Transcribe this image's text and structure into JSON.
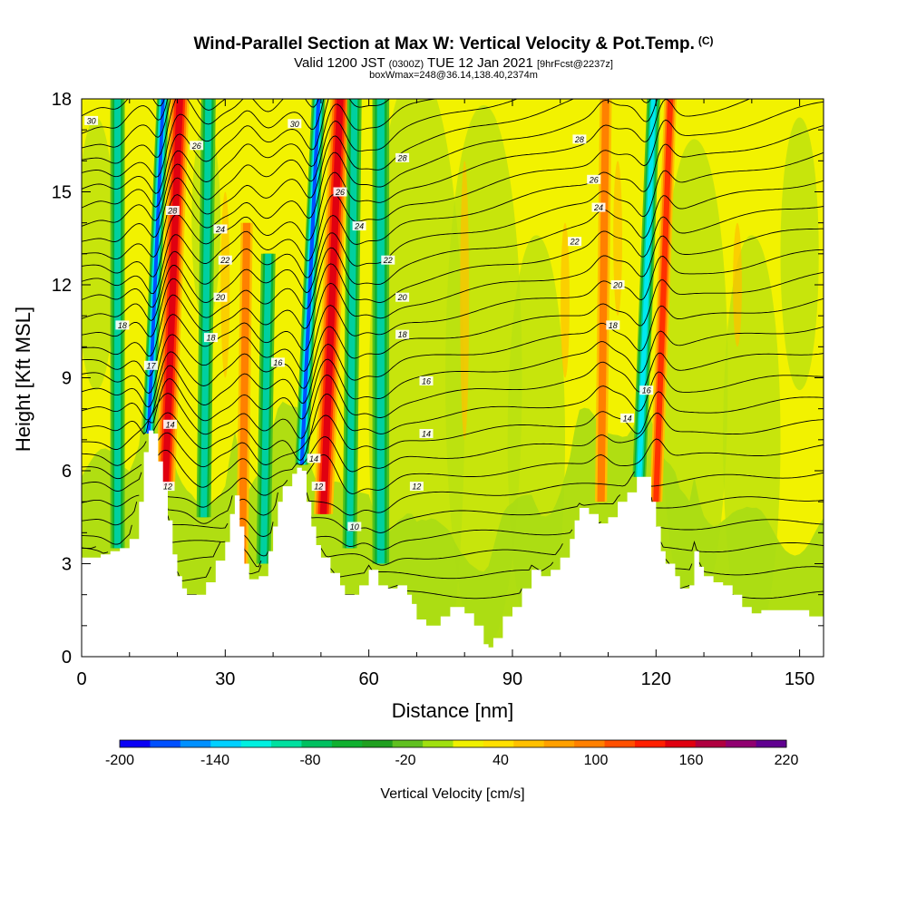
{
  "header": {
    "title": "Wind-Parallel Section at Max W: Vertical Velocity & Pot.Temp.",
    "copyright": "(C)",
    "valid_prefix": "Valid 1200 JST",
    "valid_utc": "(0300Z)",
    "valid_date": "TUE 12 Jan 2021",
    "forecast": "[9hrFcst@2237z]",
    "box_info": "boxWmax=248@36.14,138.40,2374m"
  },
  "chart_data": {
    "type": "heatmap",
    "xlabel": "Distance [nm]",
    "ylabel": "Height [Kft MSL]",
    "xlim": [
      0,
      155
    ],
    "ylim": [
      0,
      18
    ],
    "xticks": [
      "0",
      "30",
      "60",
      "90",
      "120",
      "150"
    ],
    "yticks": [
      "0",
      "3",
      "6",
      "9",
      "12",
      "15",
      "18"
    ],
    "colorbar": {
      "title": "Vertical Velocity [cm/s]",
      "tick_labels": [
        "-200",
        "-140",
        "-80",
        "-20",
        "40",
        "100",
        "160",
        "220"
      ],
      "colors": [
        "#0a00f5",
        "#0050ff",
        "#0090ff",
        "#00d0ff",
        "#00f0e0",
        "#00e0a0",
        "#00c060",
        "#10b030",
        "#20a020",
        "#60c020",
        "#a0e010",
        "#f0f000",
        "#ffe000",
        "#ffc000",
        "#ffa000",
        "#ff8000",
        "#ff5000",
        "#ff2000",
        "#e00010",
        "#b00040",
        "#900070",
        "#600090"
      ]
    },
    "terrain_kft": [
      [
        0,
        3.2
      ],
      [
        2,
        3.2
      ],
      [
        4,
        3.3
      ],
      [
        6,
        3.4
      ],
      [
        8,
        3.5
      ],
      [
        10,
        3.8
      ],
      [
        12,
        5.0
      ],
      [
        13,
        6.6
      ],
      [
        14,
        7.3
      ],
      [
        15,
        7.2
      ],
      [
        16,
        6.3
      ],
      [
        17,
        5.4
      ],
      [
        18,
        4.4
      ],
      [
        19,
        3.3
      ],
      [
        20,
        2.6
      ],
      [
        21,
        2.2
      ],
      [
        22,
        2.0
      ],
      [
        24,
        2.0
      ],
      [
        26,
        2.4
      ],
      [
        28,
        3.1
      ],
      [
        30,
        3.7
      ],
      [
        31,
        4.6
      ],
      [
        32,
        5.2
      ],
      [
        33,
        4.2
      ],
      [
        34,
        3.0
      ],
      [
        35,
        2.5
      ],
      [
        37,
        2.6
      ],
      [
        39,
        3.4
      ],
      [
        40,
        4.2
      ],
      [
        41,
        5.0
      ],
      [
        42,
        5.5
      ],
      [
        44,
        5.9
      ],
      [
        45,
        6.1
      ],
      [
        46,
        6.0
      ],
      [
        47,
        5.0
      ],
      [
        48,
        4.2
      ],
      [
        49,
        3.6
      ],
      [
        50,
        3.2
      ],
      [
        52,
        2.7
      ],
      [
        54,
        2.3
      ],
      [
        55,
        2.0
      ],
      [
        57,
        2.0
      ],
      [
        58,
        2.3
      ],
      [
        60,
        2.8
      ],
      [
        62,
        2.3
      ],
      [
        64,
        2.2
      ],
      [
        66,
        2.3
      ],
      [
        68,
        2.0
      ],
      [
        69,
        1.7
      ],
      [
        70,
        1.2
      ],
      [
        72,
        1.0
      ],
      [
        75,
        1.3
      ],
      [
        77,
        1.6
      ],
      [
        80,
        1.4
      ],
      [
        82,
        1.0
      ],
      [
        84,
        0.4
      ],
      [
        85,
        0.3
      ],
      [
        86,
        0.6
      ],
      [
        88,
        1.3
      ],
      [
        90,
        1.6
      ],
      [
        92,
        2.2
      ],
      [
        94,
        2.8
      ],
      [
        96,
        2.6
      ],
      [
        98,
        2.8
      ],
      [
        100,
        3.2
      ],
      [
        102,
        3.8
      ],
      [
        103,
        4.4
      ],
      [
        104,
        4.8
      ],
      [
        106,
        4.6
      ],
      [
        108,
        4.3
      ],
      [
        110,
        4.5
      ],
      [
        112,
        5.0
      ],
      [
        114,
        5.3
      ],
      [
        116,
        5.8
      ],
      [
        118,
        5.8
      ],
      [
        119,
        5.0
      ],
      [
        120,
        4.2
      ],
      [
        121,
        3.4
      ],
      [
        122,
        3.0
      ],
      [
        124,
        2.6
      ],
      [
        125,
        2.2
      ],
      [
        127,
        2.3
      ],
      [
        128,
        3.4
      ],
      [
        129,
        2.9
      ],
      [
        130,
        2.6
      ],
      [
        132,
        2.4
      ],
      [
        134,
        2.3
      ],
      [
        136,
        2.0
      ],
      [
        138,
        1.6
      ],
      [
        140,
        1.4
      ],
      [
        142,
        1.5
      ],
      [
        145,
        1.5
      ],
      [
        148,
        1.5
      ],
      [
        152,
        1.3
      ],
      [
        155,
        1.3
      ]
    ],
    "bands": [
      {
        "x": 17.5,
        "w": 4.0,
        "ymin": 5.5,
        "ymax": 18,
        "type": "up",
        "amp": 3,
        "slant": 3
      },
      {
        "x": 14.0,
        "w": 2.6,
        "ymin": 7.2,
        "ymax": 18,
        "type": "down",
        "amp": 3,
        "slant": 3
      },
      {
        "x": 50.5,
        "w": 4.0,
        "ymin": 4.6,
        "ymax": 18,
        "type": "up",
        "amp": 3,
        "slant": 3.5
      },
      {
        "x": 46.0,
        "w": 2.8,
        "ymin": 6.2,
        "ymax": 18,
        "type": "down",
        "amp": 3,
        "slant": 3.5
      },
      {
        "x": 25.5,
        "w": 3.0,
        "ymin": 4.5,
        "ymax": 18,
        "type": "down",
        "amp": 1,
        "slant": 1
      },
      {
        "x": 33.5,
        "w": 2.5,
        "ymin": 2.8,
        "ymax": 14,
        "type": "up",
        "amp": 1,
        "slant": 1
      },
      {
        "x": 38.0,
        "w": 3.0,
        "ymin": 3.0,
        "ymax": 13,
        "type": "down",
        "amp": 1,
        "slant": 1
      },
      {
        "x": 56.0,
        "w": 3.0,
        "ymin": 3.5,
        "ymax": 18,
        "type": "down",
        "amp": 1,
        "slant": 1
      },
      {
        "x": 116.5,
        "w": 2.8,
        "ymin": 5.8,
        "ymax": 18,
        "type": "down",
        "amp": 2,
        "slant": 3
      },
      {
        "x": 120.0,
        "w": 2.6,
        "ymin": 5.0,
        "ymax": 18,
        "type": "up",
        "amp": 2,
        "slant": 3
      },
      {
        "x": 108.5,
        "w": 2.5,
        "ymin": 5.0,
        "ymax": 18,
        "type": "up",
        "amp": 1,
        "slant": 1
      },
      {
        "x": 7.5,
        "w": 3.0,
        "ymin": 3.5,
        "ymax": 18,
        "type": "down",
        "amp": 1,
        "slant": 0
      },
      {
        "x": 62.5,
        "w": 3.5,
        "ymin": 3.0,
        "ymax": 18,
        "type": "down",
        "amp": 1,
        "slant": 0
      }
    ],
    "contour_labels": [
      {
        "text": "30",
        "x": 2,
        "y": 17.3
      },
      {
        "text": "26",
        "x": 24,
        "y": 16.5
      },
      {
        "text": "28",
        "x": 19,
        "y": 14.4
      },
      {
        "text": "24",
        "x": 29,
        "y": 13.8
      },
      {
        "text": "22",
        "x": 30,
        "y": 12.8
      },
      {
        "text": "20",
        "x": 29,
        "y": 11.6
      },
      {
        "text": "18",
        "x": 27,
        "y": 10.3
      },
      {
        "text": "18",
        "x": 8.5,
        "y": 10.7
      },
      {
        "text": "17",
        "x": 14.5,
        "y": 9.4
      },
      {
        "text": "14",
        "x": 18.5,
        "y": 7.5
      },
      {
        "text": "12",
        "x": 18,
        "y": 5.5
      },
      {
        "text": "30",
        "x": 44.5,
        "y": 17.2
      },
      {
        "text": "26",
        "x": 54,
        "y": 15.0
      },
      {
        "text": "24",
        "x": 58,
        "y": 13.9
      },
      {
        "text": "22",
        "x": 64,
        "y": 12.8
      },
      {
        "text": "20",
        "x": 67,
        "y": 11.6
      },
      {
        "text": "18",
        "x": 67,
        "y": 10.4
      },
      {
        "text": "16",
        "x": 41,
        "y": 9.5
      },
      {
        "text": "14",
        "x": 48.5,
        "y": 6.4
      },
      {
        "text": "12",
        "x": 49.5,
        "y": 5.5
      },
      {
        "text": "10",
        "x": 57,
        "y": 4.2
      },
      {
        "text": "28",
        "x": 67,
        "y": 16.1
      },
      {
        "text": "16",
        "x": 72,
        "y": 8.9
      },
      {
        "text": "14",
        "x": 72,
        "y": 7.2
      },
      {
        "text": "12",
        "x": 70,
        "y": 5.5
      },
      {
        "text": "28",
        "x": 104,
        "y": 16.7
      },
      {
        "text": "26",
        "x": 107,
        "y": 15.4
      },
      {
        "text": "24",
        "x": 108,
        "y": 14.5
      },
      {
        "text": "22",
        "x": 103,
        "y": 13.4
      },
      {
        "text": "20",
        "x": 112,
        "y": 12.0
      },
      {
        "text": "18",
        "x": 111,
        "y": 10.7
      },
      {
        "text": "16",
        "x": 118,
        "y": 8.6
      },
      {
        "text": "14",
        "x": 114,
        "y": 7.7
      }
    ]
  }
}
